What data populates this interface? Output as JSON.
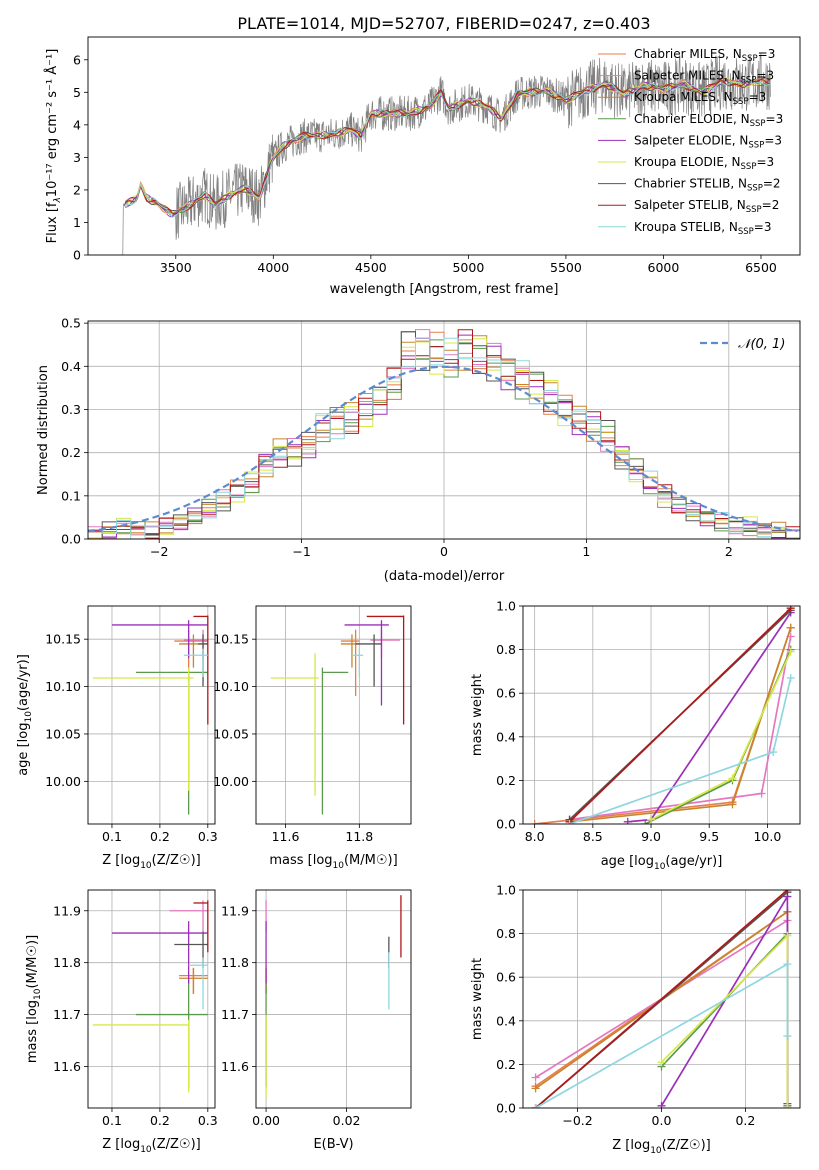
{
  "figure": {
    "title": "PLATE=1014, MJD=52707, FIBERID=0247, z=0.403"
  },
  "legend_series": [
    {
      "label_main": "Chabrier MILES, N",
      "label_sub": "SSP",
      "label_tail": "=3",
      "color": "#e87e4a"
    },
    {
      "label_main": "Salpeter MILES, N",
      "label_sub": "SSP",
      "label_tail": "=3",
      "color": "#e377c2"
    },
    {
      "label_main": "Kroupa MILES, N",
      "label_sub": "SSP",
      "label_tail": "=3",
      "color": "#c8852c"
    },
    {
      "label_main": "Chabrier ELODIE, N",
      "label_sub": "SSP",
      "label_tail": "=3",
      "color": "#5b9a4c"
    },
    {
      "label_main": "Salpeter ELODIE, N",
      "label_sub": "SSP",
      "label_tail": "=3",
      "color": "#9b30b8"
    },
    {
      "label_main": "Kroupa ELODIE, N",
      "label_sub": "SSP",
      "label_tail": "=3",
      "color": "#d6e84a"
    },
    {
      "label_main": "Chabrier STELIB, N",
      "label_sub": "SSP",
      "label_tail": "=2",
      "color": "#555555"
    },
    {
      "label_main": "Salpeter STELIB, N",
      "label_sub": "SSP",
      "label_tail": "=2",
      "color": "#b01818"
    },
    {
      "label_main": "Kroupa STELIB, N",
      "label_sub": "SSP",
      "label_tail": "=3",
      "color": "#8ed6e0"
    }
  ],
  "chart_data": [
    {
      "id": "spectrum",
      "type": "line",
      "xlabel": "wavelength [Angstrom, rest frame]",
      "ylabel_main": "Flux [f",
      "ylabel_rest": "10⁻¹⁷ erg cm⁻² s⁻¹ Å⁻¹]",
      "xlim": [
        3050,
        6700
      ],
      "ylim": [
        0,
        6.7
      ],
      "xticks": [
        3500,
        4000,
        4500,
        5000,
        5500,
        6000,
        6500
      ],
      "yticks": [
        0,
        1,
        2,
        3,
        4,
        5,
        6
      ],
      "anchors_x": [
        3240,
        3300,
        3320,
        3350,
        3400,
        3480,
        3550,
        3650,
        3700,
        3780,
        3850,
        3930,
        3990,
        4050,
        4150,
        4300,
        4400,
        4450,
        4500,
        4600,
        4700,
        4800,
        4860,
        4900,
        5000,
        5100,
        5170,
        5250,
        5400,
        5500,
        5600,
        5700,
        5800,
        5900,
        6000,
        6100,
        6200,
        6300,
        6400,
        6550
      ],
      "anchors_y": [
        1.55,
        1.75,
        2.15,
        1.75,
        1.6,
        1.25,
        1.45,
        1.85,
        1.55,
        1.85,
        2.05,
        1.75,
        2.9,
        3.35,
        3.65,
        3.7,
        3.85,
        3.65,
        4.35,
        4.35,
        4.35,
        4.55,
        5.0,
        4.5,
        4.75,
        4.55,
        4.2,
        4.95,
        5.05,
        4.75,
        5.05,
        5.25,
        4.95,
        5.2,
        5.1,
        5.25,
        5.0,
        5.35,
        5.25,
        5.35
      ]
    },
    {
      "id": "residuals",
      "type": "line",
      "xlabel": "(data-model)/error",
      "ylabel": "Normed distribution",
      "xlim": [
        -2.5,
        2.5
      ],
      "ylim": [
        0,
        0.505
      ],
      "xticks": [
        -2,
        -1,
        0,
        1,
        2
      ],
      "yticks": [
        0,
        0.1,
        0.2,
        0.3,
        0.4,
        0.5
      ],
      "legend": "𝒩(0, 1)",
      "bin_width": 0.1,
      "hist_values": [
        0.01,
        0.02,
        0.03,
        0.02,
        0.02,
        0.03,
        0.04,
        0.05,
        0.07,
        0.09,
        0.11,
        0.13,
        0.17,
        0.2,
        0.2,
        0.22,
        0.26,
        0.27,
        0.28,
        0.3,
        0.33,
        0.36,
        0.44,
        0.44,
        0.43,
        0.42,
        0.44,
        0.43,
        0.41,
        0.39,
        0.37,
        0.35,
        0.33,
        0.3,
        0.28,
        0.26,
        0.24,
        0.19,
        0.16,
        0.13,
        0.1,
        0.08,
        0.06,
        0.05,
        0.04,
        0.03,
        0.03,
        0.02,
        0.02,
        0.01
      ]
    },
    {
      "id": "age-vs-Z",
      "type": "scatter",
      "xlabel_main": "Z [log",
      "xlabel_rest": "(Z/Z☉)]",
      "ylabel_main": "age  [log",
      "ylabel_rest": "(age/yr)]",
      "xlim": [
        0.05,
        0.315
      ],
      "ylim": [
        9.955,
        10.185
      ],
      "xticks": [
        0.1,
        0.2,
        0.3
      ],
      "yticks": [
        10.0,
        10.05,
        10.1,
        10.15
      ],
      "points": [
        {
          "x": 0.26,
          "y": 10.148,
          "xlo": 0.23,
          "xhi": 0.3,
          "ylo": 10.12,
          "yhi": 10.16,
          "color": "#e87e4a"
        },
        {
          "x": 0.29,
          "y": 10.149,
          "xlo": 0.25,
          "xhi": 0.3,
          "ylo": 10.13,
          "yhi": 10.16,
          "color": "#e377c2"
        },
        {
          "x": 0.27,
          "y": 10.145,
          "xlo": 0.24,
          "xhi": 0.3,
          "ylo": 10.12,
          "yhi": 10.155,
          "color": "#c8852c"
        },
        {
          "x": 0.26,
          "y": 10.115,
          "xlo": 0.15,
          "xhi": 0.3,
          "ylo": 9.965,
          "yhi": 10.12,
          "color": "#5b9a4c"
        },
        {
          "x": 0.26,
          "y": 10.165,
          "xlo": 0.1,
          "xhi": 0.3,
          "ylo": 10.13,
          "yhi": 10.17,
          "color": "#9b30b8"
        },
        {
          "x": 0.26,
          "y": 10.109,
          "xlo": 0.06,
          "xhi": 0.27,
          "ylo": 9.99,
          "yhi": 10.12,
          "color": "#d6e84a"
        },
        {
          "x": 0.29,
          "y": 10.145,
          "xlo": 0.28,
          "xhi": 0.3,
          "ylo": 10.1,
          "yhi": 10.155,
          "color": "#555555"
        },
        {
          "x": 0.3,
          "y": 10.174,
          "xlo": 0.27,
          "xhi": 0.3,
          "ylo": 10.06,
          "yhi": 10.175,
          "color": "#b01818"
        },
        {
          "x": 0.29,
          "y": 10.133,
          "xlo": 0.25,
          "xhi": 0.3,
          "ylo": 10.11,
          "yhi": 10.14,
          "color": "#8ed6e0"
        }
      ]
    },
    {
      "id": "age-vs-mass",
      "type": "scatter",
      "xlabel_main": "mass [log",
      "xlabel_rest": "(M/M☉)]",
      "xlim": [
        11.52,
        11.94
      ],
      "ylim": [
        9.955,
        10.185
      ],
      "xticks": [
        11.6,
        11.8
      ],
      "yticks": [
        10.0,
        10.05,
        10.1,
        10.15
      ],
      "points": [
        {
          "x": 11.79,
          "y": 10.148,
          "xlo": 11.75,
          "xhi": 11.8,
          "ylo": 10.09,
          "yhi": 10.16,
          "color": "#e87e4a"
        },
        {
          "x": 11.86,
          "y": 10.149,
          "xlo": 11.83,
          "xhi": 11.91,
          "ylo": 10.13,
          "yhi": 10.16,
          "color": "#e377c2"
        },
        {
          "x": 11.78,
          "y": 10.145,
          "xlo": 11.75,
          "xhi": 11.8,
          "ylo": 10.12,
          "yhi": 10.155,
          "color": "#c8852c"
        },
        {
          "x": 11.7,
          "y": 10.115,
          "xlo": 11.7,
          "xhi": 11.77,
          "ylo": 9.965,
          "yhi": 10.12,
          "color": "#5b9a4c"
        },
        {
          "x": 11.86,
          "y": 10.165,
          "xlo": 11.76,
          "xhi": 11.88,
          "ylo": 10.08,
          "yhi": 10.17,
          "color": "#9b30b8"
        },
        {
          "x": 11.68,
          "y": 10.109,
          "xlo": 11.56,
          "xhi": 11.69,
          "ylo": 9.985,
          "yhi": 10.135,
          "color": "#d6e84a"
        },
        {
          "x": 11.84,
          "y": 10.145,
          "xlo": 11.79,
          "xhi": 11.86,
          "ylo": 10.1,
          "yhi": 10.155,
          "color": "#555555"
        },
        {
          "x": 11.92,
          "y": 10.174,
          "xlo": 11.82,
          "xhi": 11.92,
          "ylo": 10.06,
          "yhi": 10.175,
          "color": "#b01818"
        },
        {
          "x": 11.8,
          "y": 10.133,
          "xlo": 11.78,
          "xhi": 11.81,
          "ylo": 10.11,
          "yhi": 10.14,
          "color": "#8ed6e0"
        }
      ]
    },
    {
      "id": "massweight-vs-age",
      "type": "line",
      "xlabel_main": "age  [log",
      "xlabel_rest": "(age/yr)]",
      "ylabel": "mass weight",
      "xlim": [
        7.9,
        10.28
      ],
      "ylim": [
        0,
        1.0
      ],
      "xticks": [
        8.0,
        8.5,
        9.0,
        9.5,
        10.0
      ],
      "yticks": [
        0,
        0.2,
        0.4,
        0.6,
        0.8,
        1.0
      ],
      "series": [
        {
          "x": [
            8.0,
            9.7,
            10.2
          ],
          "y": [
            0.0,
            0.1,
            0.9
          ],
          "color": "#e87e4a"
        },
        {
          "x": [
            8.3,
            9.95,
            10.2
          ],
          "y": [
            0.02,
            0.14,
            0.86
          ],
          "color": "#e377c2"
        },
        {
          "x": [
            8.3,
            9.7,
            10.2
          ],
          "y": [
            0.01,
            0.09,
            0.9
          ],
          "color": "#c8852c"
        },
        {
          "x": [
            8.95,
            9.7,
            10.2
          ],
          "y": [
            0.0,
            0.2,
            0.8
          ],
          "color": "#5b9a4c"
        },
        {
          "x": [
            8.8,
            9.0,
            10.2
          ],
          "y": [
            0.01,
            0.02,
            0.97
          ],
          "color": "#9b30b8"
        },
        {
          "x": [
            9.0,
            9.7,
            10.2
          ],
          "y": [
            0.02,
            0.21,
            0.79
          ],
          "color": "#d6e84a"
        },
        {
          "x": [
            8.3,
            10.2
          ],
          "y": [
            0.02,
            0.98
          ],
          "color": "#555555"
        },
        {
          "x": [
            8.3,
            10.2
          ],
          "y": [
            0.01,
            0.99
          ],
          "color": "#b01818"
        },
        {
          "x": [
            8.3,
            10.05,
            10.2
          ],
          "y": [
            0.0,
            0.33,
            0.67
          ],
          "color": "#8ed6e0"
        }
      ]
    },
    {
      "id": "mass-vs-Z",
      "type": "scatter",
      "xlabel_main": "Z [log",
      "xlabel_rest": "(Z/Z☉)]",
      "ylabel_main": "mass [log",
      "ylabel_rest": "(M/M☉)]",
      "xlim": [
        0.05,
        0.315
      ],
      "ylim": [
        11.52,
        11.94
      ],
      "xticks": [
        0.1,
        0.2,
        0.3
      ],
      "yticks": [
        11.6,
        11.7,
        11.8,
        11.9
      ],
      "points": [
        {
          "x": 0.27,
          "y": 11.775,
          "xlo": 0.24,
          "xhi": 0.3,
          "ylo": 11.74,
          "yhi": 11.79,
          "color": "#e87e4a"
        },
        {
          "x": 0.29,
          "y": 11.9,
          "xlo": 0.22,
          "xhi": 0.3,
          "ylo": 11.86,
          "yhi": 11.92,
          "color": "#e377c2"
        },
        {
          "x": 0.27,
          "y": 11.77,
          "xlo": 0.24,
          "xhi": 0.3,
          "ylo": 11.74,
          "yhi": 11.79,
          "color": "#c8852c"
        },
        {
          "x": 0.26,
          "y": 11.7,
          "xlo": 0.15,
          "xhi": 0.3,
          "ylo": 11.56,
          "yhi": 11.77,
          "color": "#5b9a4c"
        },
        {
          "x": 0.26,
          "y": 11.857,
          "xlo": 0.1,
          "xhi": 0.3,
          "ylo": 11.76,
          "yhi": 11.88,
          "color": "#9b30b8"
        },
        {
          "x": 0.26,
          "y": 11.68,
          "xlo": 0.06,
          "xhi": 0.26,
          "ylo": 11.55,
          "yhi": 11.69,
          "color": "#d6e84a"
        },
        {
          "x": 0.29,
          "y": 11.835,
          "xlo": 0.23,
          "xhi": 0.3,
          "ylo": 11.79,
          "yhi": 11.86,
          "color": "#555555"
        },
        {
          "x": 0.3,
          "y": 11.915,
          "xlo": 0.27,
          "xhi": 0.3,
          "ylo": 11.82,
          "yhi": 11.92,
          "color": "#b01818"
        },
        {
          "x": 0.29,
          "y": 11.795,
          "xlo": 0.26,
          "xhi": 0.3,
          "ylo": 11.71,
          "yhi": 11.81,
          "color": "#8ed6e0"
        }
      ]
    },
    {
      "id": "mass-vs-EBV",
      "type": "scatter",
      "xlabel": "E(B-V)",
      "xlim": [
        -0.0025,
        0.036
      ],
      "ylim": [
        11.52,
        11.94
      ],
      "xticks": [
        0.0,
        0.02
      ],
      "yticks": [
        11.6,
        11.7,
        11.8,
        11.9
      ],
      "points": [
        {
          "x": 0.0,
          "y": 11.775,
          "xlo": 0.0,
          "xhi": 0.0,
          "ylo": 11.74,
          "yhi": 11.79,
          "color": "#e87e4a"
        },
        {
          "x": 0.0,
          "y": 11.9,
          "xlo": 0.0,
          "xhi": 0.0,
          "ylo": 11.86,
          "yhi": 11.92,
          "color": "#e377c2"
        },
        {
          "x": 0.0,
          "y": 11.77,
          "xlo": 0.0,
          "xhi": 0.0,
          "ylo": 11.74,
          "yhi": 11.79,
          "color": "#c8852c"
        },
        {
          "x": 0.0,
          "y": 11.7,
          "xlo": 0.0,
          "xhi": 0.0,
          "ylo": 11.56,
          "yhi": 11.76,
          "color": "#5b9a4c"
        },
        {
          "x": 0.0,
          "y": 11.857,
          "xlo": 0.0,
          "xhi": 0.0,
          "ylo": 11.76,
          "yhi": 11.88,
          "color": "#9b30b8"
        },
        {
          "x": 0.0,
          "y": 11.68,
          "xlo": 0.0,
          "xhi": 0.0,
          "ylo": 11.54,
          "yhi": 11.7,
          "color": "#d6e84a"
        },
        {
          "x": 0.0305,
          "y": 11.835,
          "xlo": 0.0305,
          "xhi": 0.0305,
          "ylo": 11.79,
          "yhi": 11.85,
          "color": "#555555"
        },
        {
          "x": 0.0335,
          "y": 11.915,
          "xlo": 0.0335,
          "xhi": 0.0335,
          "ylo": 11.81,
          "yhi": 11.93,
          "color": "#b01818"
        },
        {
          "x": 0.0305,
          "y": 11.795,
          "xlo": 0.0305,
          "xhi": 0.0305,
          "ylo": 11.71,
          "yhi": 11.82,
          "color": "#8ed6e0"
        }
      ]
    },
    {
      "id": "massweight-vs-Z",
      "type": "line",
      "xlabel_main": "Z [log",
      "xlabel_rest": "(Z/Z☉)]",
      "ylabel": "mass weight",
      "xlim": [
        -0.33,
        0.33
      ],
      "ylim": [
        0,
        1.0
      ],
      "xticks": [
        -0.2,
        0.0,
        0.2
      ],
      "yticks": [
        0,
        0.2,
        0.4,
        0.6,
        0.8,
        1.0
      ],
      "series": [
        {
          "x": [
            -0.3,
            0.3,
            0.3
          ],
          "y": [
            0.1,
            0.9,
            0.0
          ],
          "color": "#e87e4a"
        },
        {
          "x": [
            -0.3,
            0.3,
            0.3
          ],
          "y": [
            0.14,
            0.86,
            0.0
          ],
          "color": "#e377c2"
        },
        {
          "x": [
            -0.3,
            0.3,
            0.3
          ],
          "y": [
            0.09,
            0.9,
            0.01
          ],
          "color": "#c8852c"
        },
        {
          "x": [
            0.0,
            0.3,
            0.3
          ],
          "y": [
            0.19,
            0.8,
            0.01
          ],
          "color": "#5b9a4c"
        },
        {
          "x": [
            0.0,
            0.3,
            0.3
          ],
          "y": [
            0.01,
            0.97,
            0.02
          ],
          "color": "#9b30b8"
        },
        {
          "x": [
            0.0,
            0.3,
            0.3
          ],
          "y": [
            0.21,
            0.79,
            0.0
          ],
          "color": "#d6e84a"
        },
        {
          "x": [
            -0.3,
            0.3
          ],
          "y": [
            0.0,
            0.99
          ],
          "color": "#555555"
        },
        {
          "x": [
            -0.3,
            0.3
          ],
          "y": [
            0.0,
            1.0
          ],
          "color": "#b01818"
        },
        {
          "x": [
            -0.3,
            0.3,
            0.3
          ],
          "y": [
            0.0,
            0.66,
            0.33
          ],
          "color": "#8ed6e0"
        }
      ]
    }
  ]
}
